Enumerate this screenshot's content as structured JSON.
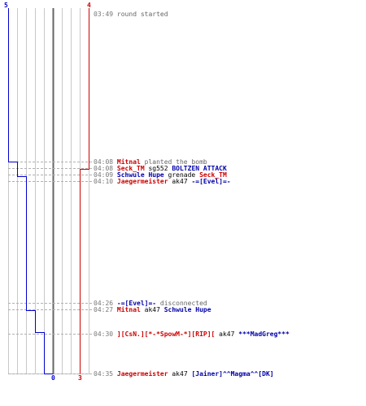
{
  "chart_data": {
    "type": "line",
    "blue_team": {
      "start_count": "5",
      "end_count": "0",
      "color": "#0000cc"
    },
    "red_team": {
      "start_count": "4",
      "end_count": "3",
      "color": "#cc0000"
    }
  },
  "events": [
    {
      "time": "03:49",
      "parts": [
        {
          "text": "round started",
          "cls": "t"
        }
      ]
    },
    {
      "time": "04:08",
      "parts": [
        {
          "text": "Mitnal",
          "cls": "r"
        },
        {
          "text": " planted the bomb",
          "cls": "t"
        }
      ]
    },
    {
      "time": "04:08",
      "parts": [
        {
          "text": "Seck_TM",
          "cls": "r"
        },
        {
          "text": " sg552 ",
          "cls": "k"
        },
        {
          "text": "BOLTZEN  ATTACK",
          "cls": "b"
        }
      ]
    },
    {
      "time": "04:09",
      "parts": [
        {
          "text": "Schwule Hupe",
          "cls": "b"
        },
        {
          "text": " grenade ",
          "cls": "k"
        },
        {
          "text": "Seck_TM",
          "cls": "r"
        }
      ]
    },
    {
      "time": "04:10",
      "parts": [
        {
          "text": "Jaegermeister",
          "cls": "r"
        },
        {
          "text": " ak47 ",
          "cls": "k"
        },
        {
          "text": "-=[Evel]=-",
          "cls": "b"
        }
      ]
    },
    {
      "time": "04:26",
      "parts": [
        {
          "text": "-=[Evel]=-",
          "cls": "b"
        },
        {
          "text": " disconnected",
          "cls": "t"
        }
      ]
    },
    {
      "time": "04:27",
      "parts": [
        {
          "text": "Mitnal",
          "cls": "r"
        },
        {
          "text": " ak47 ",
          "cls": "k"
        },
        {
          "text": "Schwule Hupe",
          "cls": "b"
        }
      ]
    },
    {
      "time": "04:30",
      "parts": [
        {
          "text": "][CsN.][*-*SpowM-*][RIP][",
          "cls": "r"
        },
        {
          "text": " ak47 ",
          "cls": "k"
        },
        {
          "text": "***MadGreg***",
          "cls": "b"
        }
      ]
    },
    {
      "time": "04:35",
      "parts": [
        {
          "text": "Jaegermeister",
          "cls": "r"
        },
        {
          "text": " ak47 ",
          "cls": "k"
        },
        {
          "text": "[Jainer]^^Magma^^[DK]",
          "cls": "b"
        }
      ]
    }
  ]
}
